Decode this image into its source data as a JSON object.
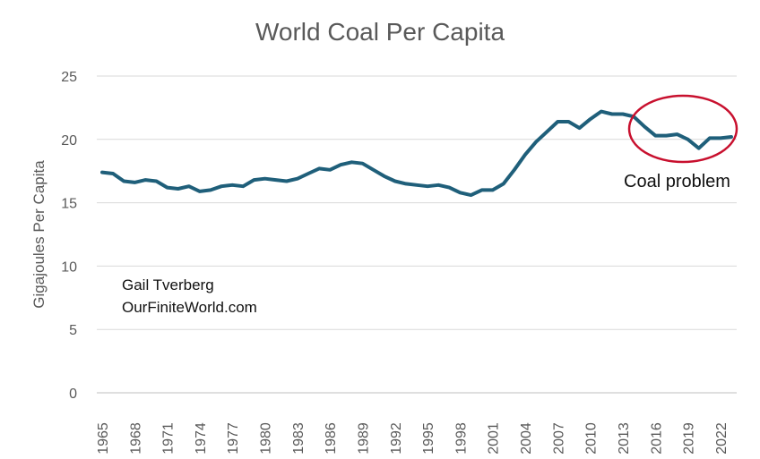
{
  "chart_data": {
    "type": "line",
    "title": "World Coal Per Capita",
    "xlabel": "",
    "ylabel": "Gigajoules Per Capita",
    "ylim": [
      0,
      25
    ],
    "yticks": [
      "0",
      "5",
      "10",
      "15",
      "20",
      "25"
    ],
    "xticks": [
      "1965",
      "1968",
      "1971",
      "1974",
      "1977",
      "1980",
      "1983",
      "1986",
      "1989",
      "1992",
      "1995",
      "1998",
      "2001",
      "2004",
      "2007",
      "2010",
      "2013",
      "2016",
      "2019",
      "2022"
    ],
    "grid": true,
    "line_color": "#1f5f7a",
    "x": [
      1965,
      1966,
      1967,
      1968,
      1969,
      1970,
      1971,
      1972,
      1973,
      1974,
      1975,
      1976,
      1977,
      1978,
      1979,
      1980,
      1981,
      1982,
      1983,
      1984,
      1985,
      1986,
      1987,
      1988,
      1989,
      1990,
      1991,
      1992,
      1993,
      1994,
      1995,
      1996,
      1997,
      1998,
      1999,
      2000,
      2001,
      2002,
      2003,
      2004,
      2005,
      2006,
      2007,
      2008,
      2009,
      2010,
      2011,
      2012,
      2013,
      2014,
      2015,
      2016,
      2017,
      2018,
      2019,
      2020,
      2021,
      2022,
      2023
    ],
    "values": [
      17.4,
      17.3,
      16.7,
      16.6,
      16.8,
      16.7,
      16.2,
      16.1,
      16.3,
      15.9,
      16.0,
      16.3,
      16.4,
      16.3,
      16.8,
      16.9,
      16.8,
      16.7,
      16.9,
      17.3,
      17.7,
      17.6,
      18.0,
      18.2,
      18.1,
      17.6,
      17.1,
      16.7,
      16.5,
      16.4,
      16.3,
      16.4,
      16.2,
      15.8,
      15.6,
      16.0,
      16.0,
      16.5,
      17.6,
      18.8,
      19.8,
      20.6,
      21.4,
      21.4,
      20.9,
      21.6,
      22.2,
      22.0,
      22.0,
      21.8,
      21.0,
      20.3,
      20.3,
      20.4,
      20.0,
      19.3,
      20.1,
      20.1,
      20.2
    ]
  },
  "annotations": {
    "author": "Gail Tverberg",
    "website": "OurFiniteWorld.com",
    "callout_label": "Coal problem",
    "callout_color": "#c8102e"
  }
}
